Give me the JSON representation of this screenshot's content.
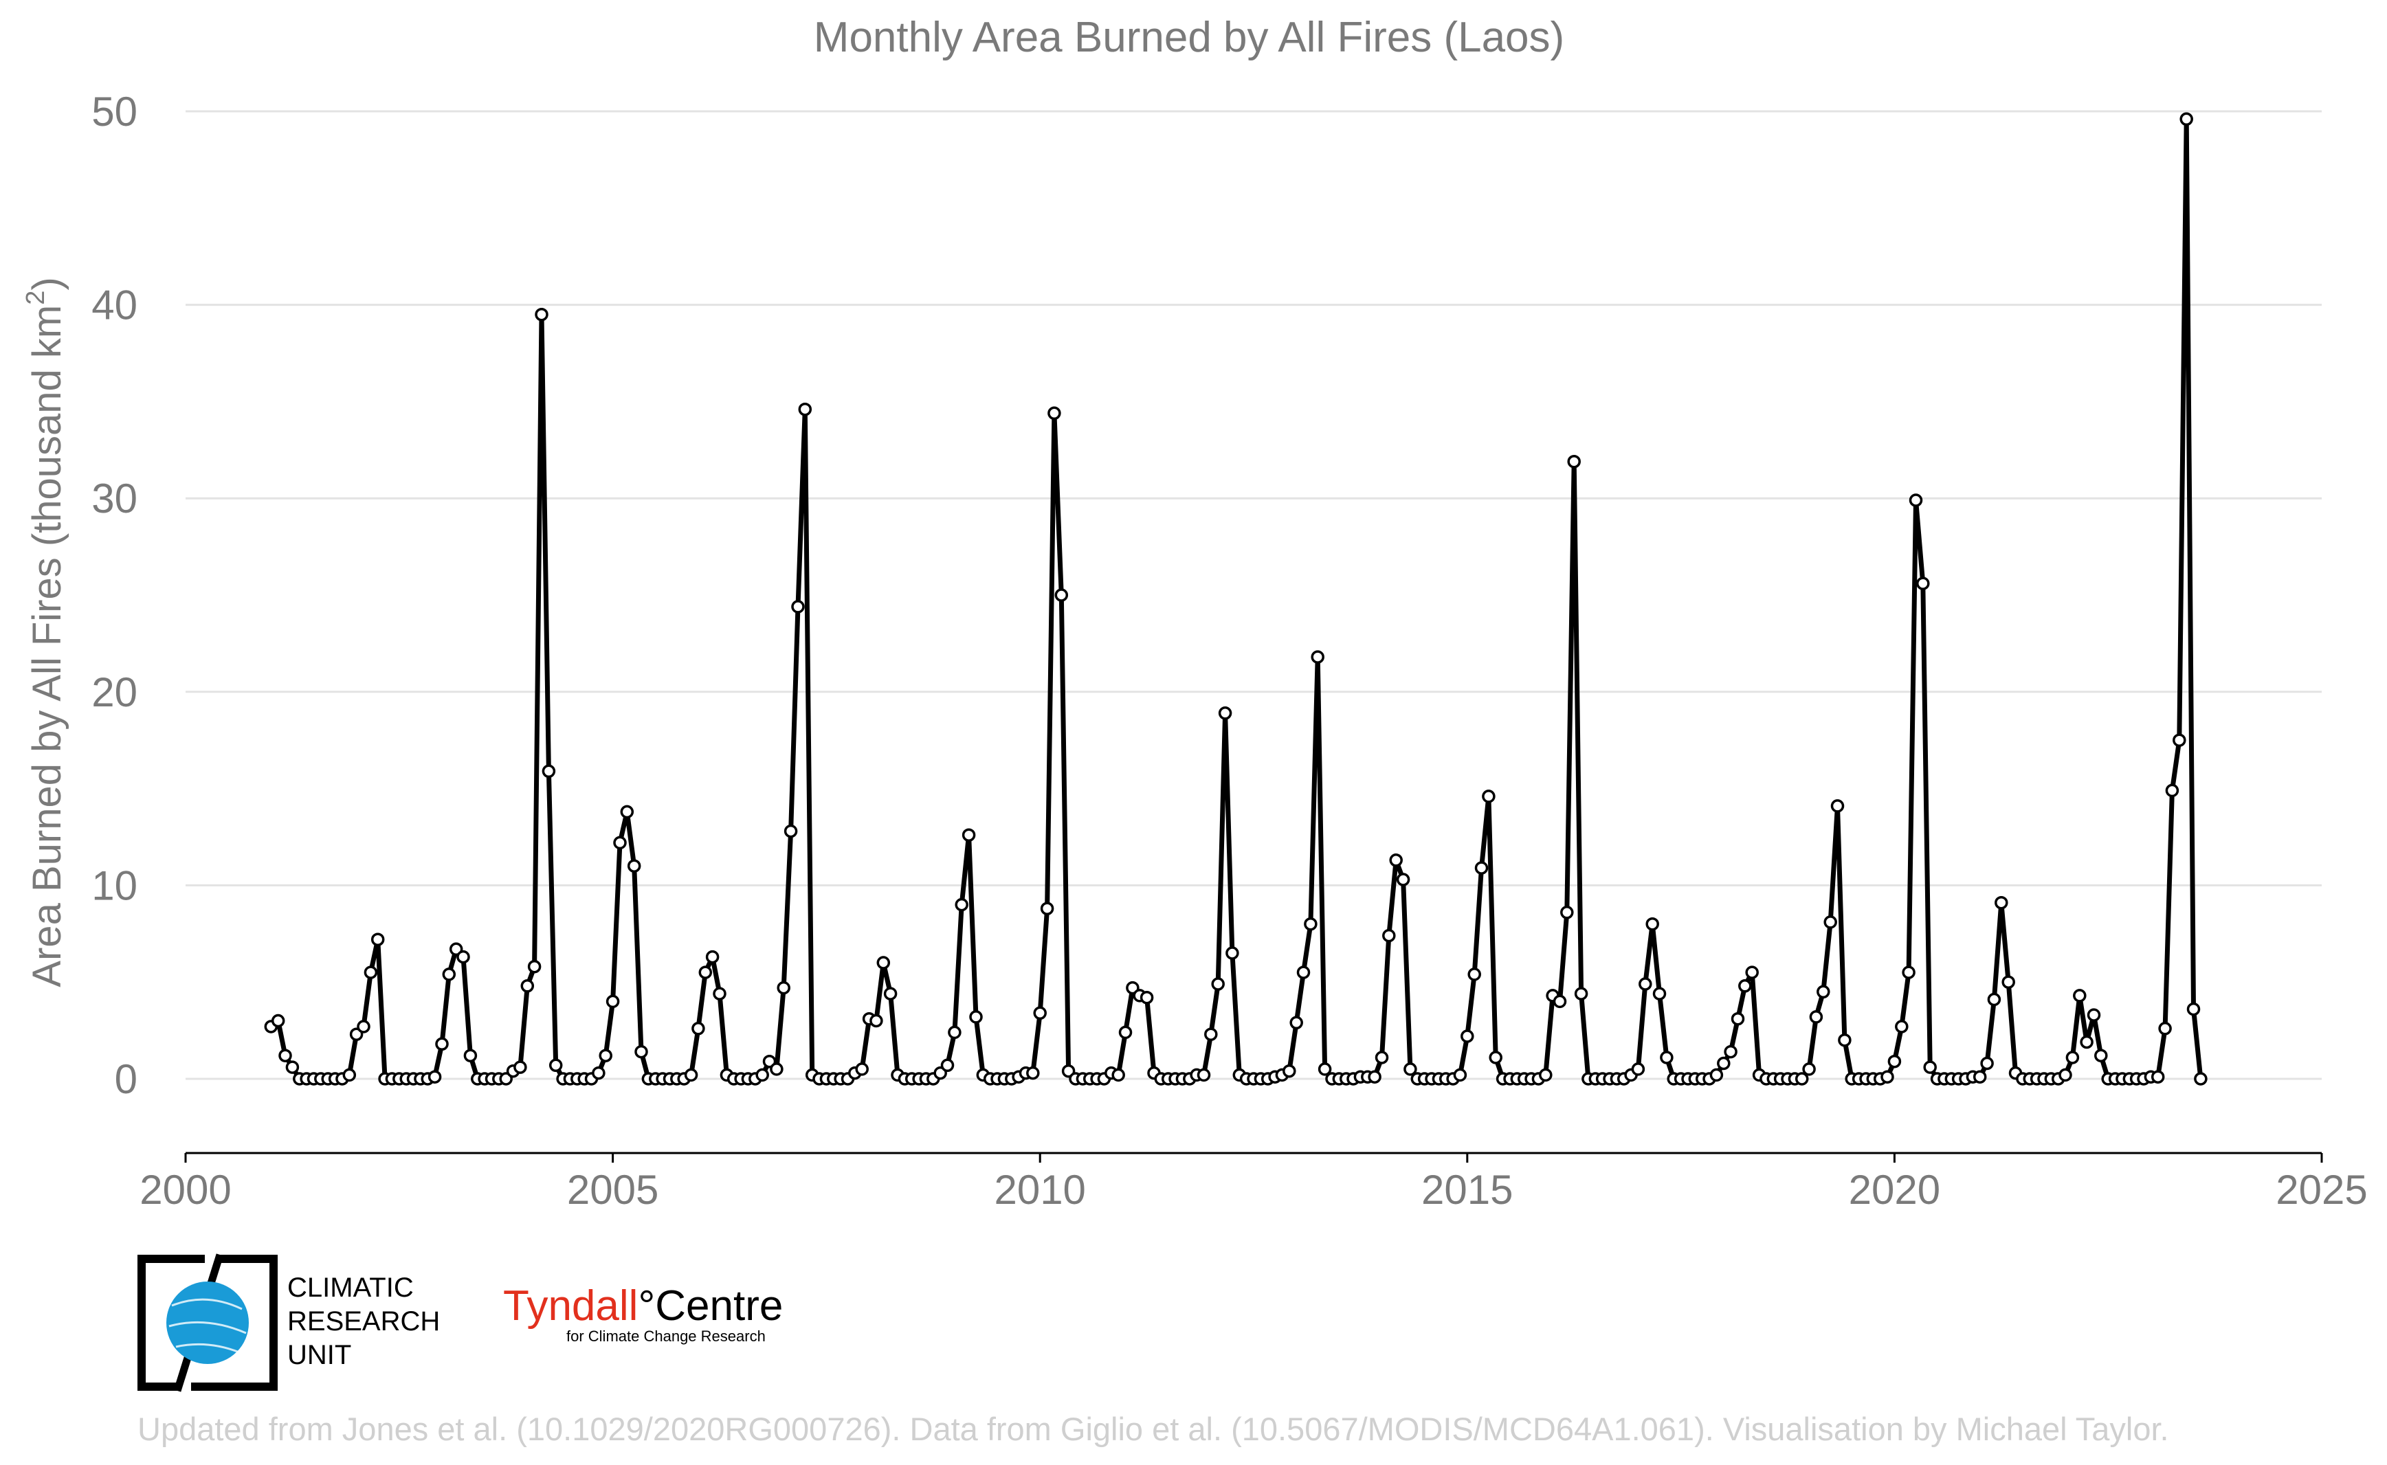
{
  "chart_data": {
    "type": "line",
    "title": "Monthly Area Burned by All Fires (Laos)",
    "xlabel": "",
    "ylabel": "Area Burned by All Fires (thousand km²)",
    "ylabel_main": "Area Burned by All Fires (thousand km",
    "ylabel_sup": "2",
    "ylabel_end": ")",
    "xlim": [
      2000,
      2025
    ],
    "ylim": [
      0,
      50
    ],
    "xticks": [
      "2000",
      "2005",
      "2010",
      "2015",
      "2020",
      "2025"
    ],
    "yticks": [
      "0",
      "10",
      "20",
      "30",
      "40",
      "50"
    ],
    "grid": true,
    "legend": "none",
    "series": [
      {
        "x_start": "2001-01",
        "values": [
          2.7,
          3.0,
          1.2,
          0.6,
          0.0,
          0.0,
          0.0,
          0.0,
          0.0,
          0.0,
          0.0,
          0.2,
          2.3,
          2.7,
          5.5,
          7.2,
          0.0,
          0.0,
          0.0,
          0.0,
          0.0,
          0.0,
          0.0,
          0.1,
          1.8,
          5.4,
          6.7,
          6.3,
          1.2,
          0.0,
          0.0,
          0.0,
          0.0,
          0.0,
          0.4,
          0.6,
          4.8,
          5.8,
          39.5,
          15.9,
          0.7,
          0.0,
          0.0,
          0.0,
          0.0,
          0.0,
          0.3,
          1.2,
          4.0,
          12.2,
          13.8,
          11.0,
          1.4,
          0.0,
          0.0,
          0.0,
          0.0,
          0.0,
          0.0,
          0.2,
          2.6,
          5.5,
          6.3,
          4.4,
          0.2,
          0.0,
          0.0,
          0.0,
          0.0,
          0.2,
          0.9,
          0.5,
          4.7,
          12.8,
          24.4,
          34.6,
          0.2,
          0.0,
          0.0,
          0.0,
          0.0,
          0.0,
          0.3,
          0.5,
          3.1,
          3.0,
          6.0,
          4.4,
          0.2,
          0.0,
          0.0,
          0.0,
          0.0,
          0.0,
          0.3,
          0.7,
          2.4,
          9.0,
          12.6,
          3.2,
          0.2,
          0.0,
          0.0,
          0.0,
          0.0,
          0.1,
          0.3,
          0.3,
          3.4,
          8.8,
          34.4,
          25.0,
          0.4,
          0.0,
          0.0,
          0.0,
          0.0,
          0.0,
          0.3,
          0.2,
          2.4,
          4.7,
          4.3,
          4.2,
          0.3,
          0.0,
          0.0,
          0.0,
          0.0,
          0.0,
          0.2,
          0.2,
          2.3,
          4.9,
          18.9,
          6.5,
          0.2,
          0.0,
          0.0,
          0.0,
          0.0,
          0.1,
          0.2,
          0.4,
          2.9,
          5.5,
          8.0,
          21.8,
          0.5,
          0.0,
          0.0,
          0.0,
          0.0,
          0.1,
          0.1,
          0.1,
          1.1,
          7.4,
          11.3,
          10.3,
          0.5,
          0.0,
          0.0,
          0.0,
          0.0,
          0.0,
          0.0,
          0.2,
          2.2,
          5.4,
          10.9,
          14.6,
          1.1,
          0.0,
          0.0,
          0.0,
          0.0,
          0.0,
          0.0,
          0.2,
          4.3,
          4.0,
          8.6,
          31.9,
          4.4,
          0.0,
          0.0,
          0.0,
          0.0,
          0.0,
          0.0,
          0.2,
          0.5,
          4.9,
          8.0,
          4.4,
          1.1,
          0.0,
          0.0,
          0.0,
          0.0,
          0.0,
          0.0,
          0.2,
          0.8,
          1.4,
          3.1,
          4.8,
          5.5,
          0.2,
          0.0,
          0.0,
          0.0,
          0.0,
          0.0,
          0.0,
          0.5,
          3.2,
          4.5,
          8.1,
          14.1,
          2.0,
          0.0,
          0.0,
          0.0,
          0.0,
          0.0,
          0.1,
          0.9,
          2.7,
          5.5,
          29.9,
          25.6,
          0.6,
          0.0,
          0.0,
          0.0,
          0.0,
          0.0,
          0.1,
          0.1,
          0.8,
          4.1,
          9.1,
          5.0,
          0.3,
          0.0,
          0.0,
          0.0,
          0.0,
          0.0,
          0.0,
          0.2,
          1.1,
          4.3,
          1.9,
          3.3,
          1.2,
          0.0,
          0.0,
          0.0,
          0.0,
          0.0,
          0.0,
          0.1,
          0.1,
          2.6,
          14.9,
          17.5,
          49.6,
          3.6,
          0.0
        ]
      }
    ]
  },
  "footer": {
    "credit": "Updated from Jones et al. (10.1029/2020RG000726). Data from Giglio et al. (10.5067/MODIS/MCD64A1.061). Visualisation by Michael Taylor."
  },
  "logos": {
    "cru_line1": "CLIMATIC",
    "cru_line2": "RESEARCH",
    "cru_line3": "UNIT",
    "tyndall_name": "Tyndall",
    "tyndall_degree": "°",
    "tyndall_centre": "Centre",
    "tyndall_sub": "for Climate Change Research"
  },
  "colors": {
    "line": "#000000",
    "marker_fill": "#ffffff",
    "text": "#7a7a7a",
    "grid": "#e3e3e3",
    "footer": "#cfcfcf",
    "cru_globe": "#1a9bd7",
    "tyndall_red": "#e2301d"
  }
}
